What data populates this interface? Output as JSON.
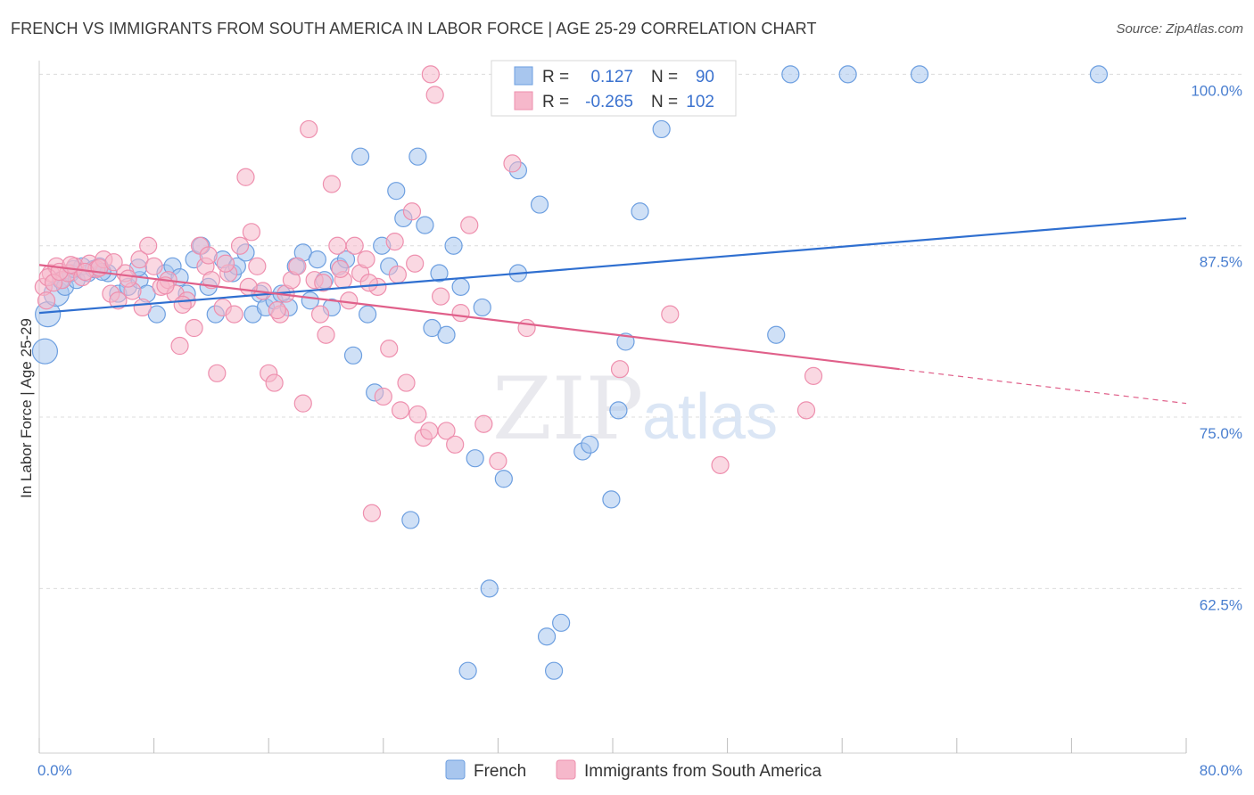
{
  "title": "FRENCH VS IMMIGRANTS FROM SOUTH AMERICA IN LABOR FORCE | AGE 25-29 CORRELATION CHART",
  "source": "Source: ZipAtlas.com",
  "watermark": {
    "zip": "ZIP",
    "atlas": "atlas"
  },
  "legend": {
    "rows": [
      {
        "r_label": "R =",
        "r_value": "0.127",
        "n_label": "N =",
        "n_value": "90",
        "color": "#a8c6ee"
      },
      {
        "r_label": "R =",
        "r_value": "-0.265",
        "n_label": "N =",
        "n_value": "102",
        "color": "#f6b8cb"
      }
    ]
  },
  "bottom_legend": [
    {
      "label": "French",
      "color": "#a8c6ee"
    },
    {
      "label": "Immigrants from South America",
      "color": "#f6b8cb"
    }
  ],
  "chart_data": {
    "type": "scatter",
    "title": "FRENCH VS IMMIGRANTS FROM SOUTH AMERICA IN LABOR FORCE | AGE 25-29 CORRELATION CHART",
    "xlabel": "",
    "ylabel": "In Labor Force | Age 25-29",
    "xlim": [
      0,
      80
    ],
    "ylim": [
      50.5,
      101
    ],
    "x_ticks": [
      {
        "value": 0,
        "label": "0.0%"
      },
      {
        "value": 80,
        "label": "80.0%"
      }
    ],
    "y_ticks": [
      {
        "value": 100,
        "label": "100.0%"
      },
      {
        "value": 87.5,
        "label": "87.5%"
      },
      {
        "value": 75,
        "label": "75.0%"
      },
      {
        "value": 62.5,
        "label": "62.5%"
      }
    ],
    "grid": true,
    "series": [
      {
        "name": "French",
        "color": "#6d9fe0",
        "fill": "#a8c6ee",
        "trend": {
          "x0": 0,
          "y0": 82.6,
          "x1": 80,
          "y1": 89.5,
          "color": "#2f6fd0"
        },
        "points": [
          [
            0.4,
            79.8
          ],
          [
            0.6,
            82.5
          ],
          [
            1.2,
            84.0
          ],
          [
            1.5,
            85.0
          ],
          [
            1.8,
            84.5
          ],
          [
            2.2,
            85.5
          ],
          [
            2.6,
            85.0
          ],
          [
            3.0,
            86.0
          ],
          [
            3.4,
            85.5
          ],
          [
            3.8,
            85.8
          ],
          [
            4.2,
            86.0
          ],
          [
            4.8,
            85.5
          ],
          [
            5.5,
            84.0
          ],
          [
            6.2,
            84.5
          ],
          [
            7.0,
            85.0
          ],
          [
            7.5,
            84.0
          ],
          [
            8.2,
            82.5
          ],
          [
            8.8,
            85.5
          ],
          [
            9.3,
            86.0
          ],
          [
            9.8,
            85.2
          ],
          [
            10.3,
            84.0
          ],
          [
            10.8,
            86.5
          ],
          [
            11.3,
            87.5
          ],
          [
            11.8,
            84.5
          ],
          [
            12.3,
            82.5
          ],
          [
            12.8,
            86.5
          ],
          [
            13.5,
            85.5
          ],
          [
            13.8,
            86.0
          ],
          [
            14.4,
            87.0
          ],
          [
            14.9,
            82.5
          ],
          [
            15.4,
            84.0
          ],
          [
            15.8,
            83.0
          ],
          [
            16.4,
            83.5
          ],
          [
            16.9,
            84.0
          ],
          [
            17.4,
            83.0
          ],
          [
            17.9,
            86.0
          ],
          [
            18.4,
            87.0
          ],
          [
            18.9,
            83.5
          ],
          [
            19.4,
            86.5
          ],
          [
            19.9,
            85.0
          ],
          [
            20.4,
            83.0
          ],
          [
            20.9,
            86.0
          ],
          [
            21.4,
            86.5
          ],
          [
            21.9,
            79.5
          ],
          [
            22.4,
            94.0
          ],
          [
            22.9,
            82.5
          ],
          [
            23.4,
            76.8
          ],
          [
            23.9,
            87.5
          ],
          [
            24.4,
            86.0
          ],
          [
            24.9,
            91.5
          ],
          [
            25.4,
            89.5
          ],
          [
            25.9,
            67.5
          ],
          [
            26.4,
            94.0
          ],
          [
            26.9,
            89.0
          ],
          [
            27.4,
            81.5
          ],
          [
            27.9,
            85.5
          ],
          [
            28.4,
            81.0
          ],
          [
            28.9,
            87.5
          ],
          [
            29.4,
            84.5
          ],
          [
            29.9,
            56.5
          ],
          [
            30.4,
            72.0
          ],
          [
            30.9,
            83.0
          ],
          [
            31.4,
            62.5
          ],
          [
            32.4,
            70.5
          ],
          [
            33.4,
            93.0
          ],
          [
            33.4,
            85.5
          ],
          [
            34.9,
            90.5
          ],
          [
            35.4,
            59.0
          ],
          [
            35.9,
            56.5
          ],
          [
            36.4,
            60.0
          ],
          [
            37.9,
            72.5
          ],
          [
            38.4,
            73.0
          ],
          [
            39.9,
            69.0
          ],
          [
            40.4,
            75.5
          ],
          [
            40.9,
            80.5
          ],
          [
            41.9,
            90.0
          ],
          [
            43.4,
            96.0
          ],
          [
            52.4,
            100.0
          ],
          [
            51.4,
            81.0
          ],
          [
            56.4,
            100.0
          ],
          [
            61.4,
            100.0
          ],
          [
            73.9,
            100.0
          ],
          [
            44.4,
            100.0
          ],
          [
            38.4,
            100.0
          ],
          [
            34.9,
            100.0
          ],
          [
            33.4,
            100.0
          ],
          [
            32.9,
            100.0
          ],
          [
            2.4,
            85.8
          ],
          [
            4.4,
            85.6
          ],
          [
            6.9,
            85.9
          ]
        ]
      },
      {
        "name": "Immigrants from South America",
        "color": "#ee8fae",
        "fill": "#f6b8cb",
        "trend": {
          "x0": 0,
          "y0": 86.1,
          "x1": 60,
          "y1": 78.5,
          "dashed_to_x": 80,
          "dashed_to_y": 76.0,
          "color": "#e0608a"
        },
        "points": [
          [
            0.3,
            84.5
          ],
          [
            0.5,
            83.5
          ],
          [
            0.8,
            85.5
          ],
          [
            1.2,
            86.0
          ],
          [
            1.6,
            85.0
          ],
          [
            2.0,
            85.5
          ],
          [
            2.5,
            86.0
          ],
          [
            3.0,
            85.2
          ],
          [
            3.5,
            86.2
          ],
          [
            4.0,
            85.8
          ],
          [
            4.5,
            86.5
          ],
          [
            5.0,
            84.0
          ],
          [
            5.5,
            83.5
          ],
          [
            6.0,
            85.5
          ],
          [
            6.5,
            84.2
          ],
          [
            7.0,
            86.5
          ],
          [
            7.2,
            83.0
          ],
          [
            7.6,
            87.5
          ],
          [
            8.0,
            86.0
          ],
          [
            8.5,
            84.5
          ],
          [
            9.0,
            85.0
          ],
          [
            9.5,
            84.0
          ],
          [
            9.8,
            80.2
          ],
          [
            10.3,
            83.5
          ],
          [
            10.8,
            81.5
          ],
          [
            11.2,
            87.5
          ],
          [
            11.6,
            86.0
          ],
          [
            12.0,
            85.0
          ],
          [
            12.4,
            78.2
          ],
          [
            12.8,
            83.0
          ],
          [
            13.2,
            85.5
          ],
          [
            13.6,
            82.5
          ],
          [
            14.0,
            87.5
          ],
          [
            14.4,
            92.5
          ],
          [
            14.8,
            88.5
          ],
          [
            15.2,
            86.0
          ],
          [
            15.6,
            84.2
          ],
          [
            16.0,
            78.2
          ],
          [
            16.4,
            77.5
          ],
          [
            16.8,
            82.5
          ],
          [
            17.2,
            84.0
          ],
          [
            17.6,
            85.0
          ],
          [
            18.0,
            86.0
          ],
          [
            18.4,
            76.0
          ],
          [
            18.8,
            96.0
          ],
          [
            19.2,
            85.0
          ],
          [
            19.6,
            82.5
          ],
          [
            20.0,
            81.0
          ],
          [
            20.4,
            92.0
          ],
          [
            20.8,
            87.5
          ],
          [
            21.2,
            85.0
          ],
          [
            21.6,
            83.5
          ],
          [
            22.0,
            87.5
          ],
          [
            22.4,
            85.5
          ],
          [
            22.8,
            86.5
          ],
          [
            23.2,
            68.0
          ],
          [
            23.6,
            84.5
          ],
          [
            24.0,
            76.5
          ],
          [
            24.4,
            80.0
          ],
          [
            24.8,
            87.8
          ],
          [
            25.2,
            75.5
          ],
          [
            25.6,
            77.5
          ],
          [
            26.0,
            90.0
          ],
          [
            26.4,
            75.2
          ],
          [
            26.8,
            73.5
          ],
          [
            27.2,
            74.0
          ],
          [
            27.6,
            98.5
          ],
          [
            28.0,
            83.8
          ],
          [
            28.4,
            74.0
          ],
          [
            29.0,
            73.0
          ],
          [
            30.0,
            89.0
          ],
          [
            31.0,
            74.5
          ],
          [
            32.0,
            71.8
          ],
          [
            33.0,
            93.5
          ],
          [
            34.0,
            81.5
          ],
          [
            37.5,
            100.0
          ],
          [
            44.0,
            82.5
          ],
          [
            47.5,
            71.5
          ],
          [
            53.5,
            75.5
          ],
          [
            54.0,
            78.0
          ],
          [
            40.5,
            78.5
          ],
          [
            27.3,
            100.0
          ],
          [
            0.6,
            85.2
          ],
          [
            1.0,
            84.8
          ],
          [
            1.4,
            85.6
          ],
          [
            2.2,
            86.1
          ],
          [
            3.2,
            85.6
          ],
          [
            4.2,
            85.9
          ],
          [
            5.2,
            86.3
          ],
          [
            6.2,
            85.1
          ],
          [
            8.8,
            84.6
          ],
          [
            10.0,
            83.2
          ],
          [
            13.0,
            86.2
          ],
          [
            14.6,
            84.5
          ],
          [
            16.6,
            82.8
          ],
          [
            19.8,
            84.8
          ],
          [
            21.0,
            85.8
          ],
          [
            23.0,
            84.8
          ],
          [
            25.0,
            85.4
          ],
          [
            29.4,
            82.6
          ],
          [
            26.2,
            86.2
          ],
          [
            11.8,
            86.8
          ]
        ]
      }
    ]
  }
}
